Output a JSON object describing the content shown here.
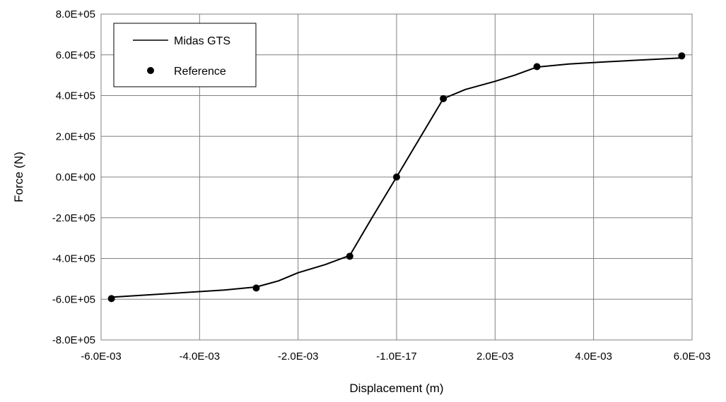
{
  "chart_data": {
    "type": "line",
    "xlabel": "Displacement (m)",
    "ylabel": "Force (N)",
    "xlim": [
      -0.006,
      0.006
    ],
    "ylim": [
      -800000,
      800000
    ],
    "x_ticks": [
      -0.006,
      -0.004,
      -0.002,
      0.0,
      0.002,
      0.004,
      0.006
    ],
    "x_tick_labels": [
      "-6.0E-03",
      "-4.0E-03",
      "-2.0E-03",
      "-1.0E-17",
      "2.0E-03",
      "4.0E-03",
      "6.0E-03"
    ],
    "y_ticks": [
      -800000,
      -600000,
      -400000,
      -200000,
      0,
      200000,
      400000,
      600000,
      800000
    ],
    "y_tick_labels": [
      "-8.0E+05",
      "-6.0E+05",
      "-4.0E+05",
      "-2.0E+05",
      "0.0E+00",
      "2.0E+05",
      "4.0E+05",
      "6.0E+05",
      "8.0E+05"
    ],
    "grid": true,
    "legend_position": "top-left",
    "series": [
      {
        "name": "Midas GTS",
        "style": "line",
        "color": "#000000",
        "x": [
          -0.00579,
          -0.0035,
          -0.00285,
          -0.0024,
          -0.002,
          -0.00145,
          -0.00095,
          -0.0005,
          0.0,
          0.00095,
          0.0014,
          0.002,
          0.0024,
          0.00285,
          0.0035,
          0.0042,
          0.00579
        ],
        "y": [
          -590000,
          -555000,
          -540000,
          -510000,
          -470000,
          -430000,
          -385000,
          -200000,
          0,
          385000,
          430000,
          470000,
          500000,
          540000,
          555000,
          565000,
          585000
        ]
      },
      {
        "name": "Reference",
        "style": "scatter",
        "color": "#000000",
        "x": [
          -0.00579,
          -0.00285,
          -0.00095,
          0.0,
          0.00095,
          0.00285,
          0.00579
        ],
        "y": [
          -597000,
          -545000,
          -389000,
          0,
          385000,
          542000,
          595000
        ]
      }
    ]
  }
}
